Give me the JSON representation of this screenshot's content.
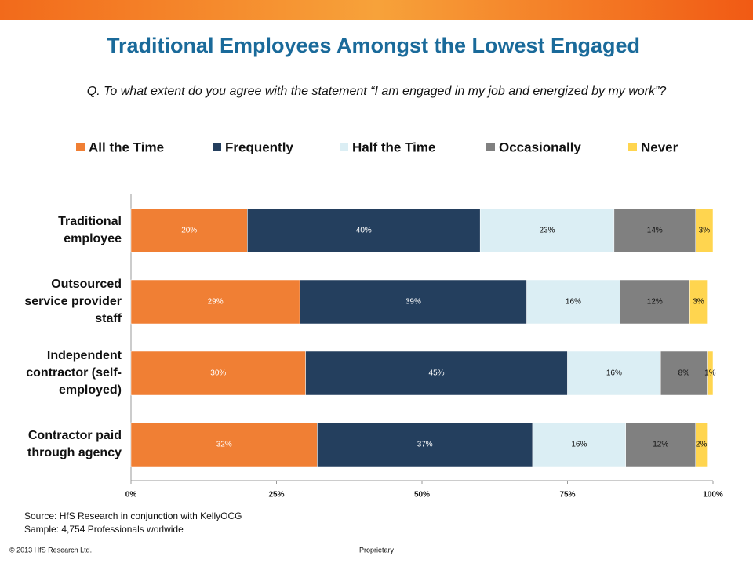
{
  "chart_data": {
    "type": "stacked_bar_horizontal",
    "title": "Traditional Employees Amongst the Lowest Engaged",
    "subtitle": "Q. To what extent do you agree with the statement “I am engaged in my job and energized by my work”?",
    "categories": [
      "Traditional\nemployee",
      "Outsourced\nservice provider\nstaff",
      "Independent\ncontractor (self-\nemployed)",
      "Contractor paid\nthrough agency"
    ],
    "series": [
      {
        "name": "All the Time",
        "color": "#f07f34",
        "values": [
          20,
          29,
          30,
          32
        ],
        "value_labels": [
          "20%",
          "29%",
          "30%",
          "32%"
        ]
      },
      {
        "name": "Frequently",
        "color": "#243f5e",
        "values": [
          40,
          39,
          45,
          37
        ],
        "value_labels": [
          "40%",
          "39%",
          "45%",
          "37%"
        ]
      },
      {
        "name": "Half the Time",
        "color": "#dbeef4",
        "values": [
          23,
          16,
          16,
          16
        ],
        "value_labels": [
          "23%",
          "16%",
          "16%",
          "16%"
        ]
      },
      {
        "name": "Occasionally",
        "color": "#808080",
        "values": [
          14,
          12,
          8,
          12
        ],
        "value_labels": [
          "14%",
          "12%",
          "8%",
          "12%"
        ]
      },
      {
        "name": "Never",
        "color": "#ffd54f",
        "values": [
          3,
          3,
          1,
          2
        ],
        "value_labels": [
          "3%",
          "3%",
          "1%",
          "2%"
        ]
      }
    ],
    "xlim": [
      0,
      100
    ],
    "xticks": [
      {
        "value": 0,
        "label": "0%"
      },
      {
        "value": 25,
        "label": "25%"
      },
      {
        "value": 50,
        "label": "50%"
      },
      {
        "value": 75,
        "label": "75%"
      },
      {
        "value": 100,
        "label": "100%"
      }
    ],
    "legend": "top",
    "source": "Source: HfS Research in conjunction with KellyOCG",
    "sample": "Sample: 4,754 Professionals worlwide",
    "copyright": "© 2013 HfS Research Ltd.",
    "footer": "Proprietary"
  }
}
